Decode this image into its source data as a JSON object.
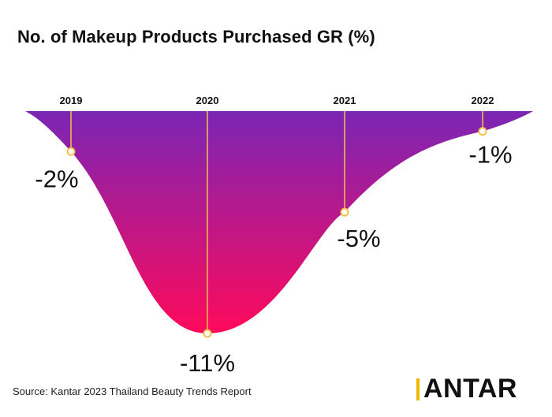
{
  "title": "No. of Makeup Products Purchased GR (%)",
  "chart_data": {
    "type": "area",
    "categories": [
      "2019",
      "2020",
      "2021",
      "2022"
    ],
    "values": [
      -2,
      -11,
      -5,
      -1
    ],
    "data_labels": [
      "-2%",
      "-11%",
      "-5%",
      "-1%"
    ],
    "ylim": [
      -11,
      0
    ],
    "xlabel": "",
    "ylabel": "",
    "grid": false,
    "colors": {
      "fill_top": "#7b25b5",
      "fill_bottom": "#ff0a5b",
      "marker": "#f2c24a"
    }
  },
  "footer": {
    "source": "Source: Kantar 2023 Thailand Beauty Trends Report",
    "brand": "KANTAR",
    "brand_color": "#f2b705"
  }
}
